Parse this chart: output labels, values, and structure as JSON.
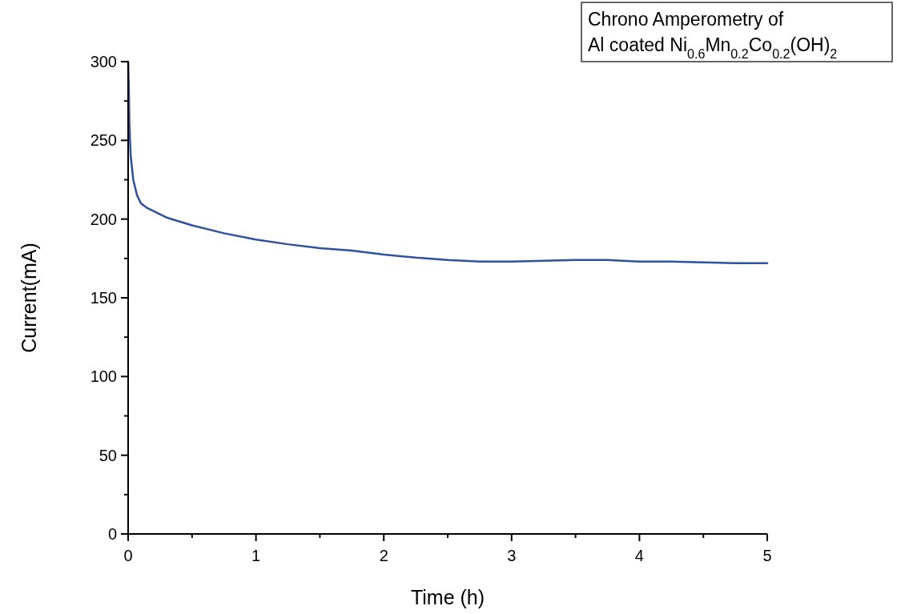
{
  "chart_data": {
    "type": "line",
    "title": "Chrono Amperometry of\nAl coated Ni$_{0.6}$Mn$_{0.2}$Co$_{0.2}$(OH)$_{2}$",
    "xlabel": "Time (h)",
    "ylabel": "Current(mA)",
    "xlim": [
      0,
      5
    ],
    "ylim": [
      0,
      300
    ],
    "xticks": [
      0,
      {
        "value": 0.5,
        "label": null
      },
      1,
      {
        "value": 1.5,
        "label": null
      },
      2,
      {
        "value": 2.5,
        "label": null
      },
      3,
      {
        "value": 3.5,
        "label": null
      },
      4,
      {
        "value": 4.5,
        "label": null
      },
      5
    ],
    "yticks": [
      0,
      {
        "value": 25,
        "label": null
      },
      50,
      {
        "value": 75,
        "label": null
      },
      100,
      {
        "value": 125,
        "label": null
      },
      150,
      {
        "value": 175,
        "label": null
      },
      200,
      {
        "value": 225,
        "label": null
      },
      250,
      {
        "value": 275,
        "label": null
      },
      300
    ],
    "grid": false,
    "series": [
      {
        "color": "#3050a0",
        "x": [
          0,
          0.005,
          0.01,
          0.02,
          0.04,
          0.07,
          0.1,
          0.15,
          0.3,
          0.5,
          0.75,
          1,
          1.25,
          1.5,
          1.75,
          2,
          2.25,
          2.5,
          2.75,
          3,
          3.25,
          3.5,
          3.75,
          4,
          4.25,
          4.5,
          4.75,
          5
        ],
        "values": [
          300,
          285,
          260,
          240,
          225,
          215,
          210,
          207,
          201,
          196,
          191,
          187,
          184,
          181.5,
          180,
          177.5,
          175.5,
          174,
          173,
          173,
          173.5,
          174,
          174,
          173,
          173,
          172.5,
          172,
          172
        ]
      }
    ]
  }
}
